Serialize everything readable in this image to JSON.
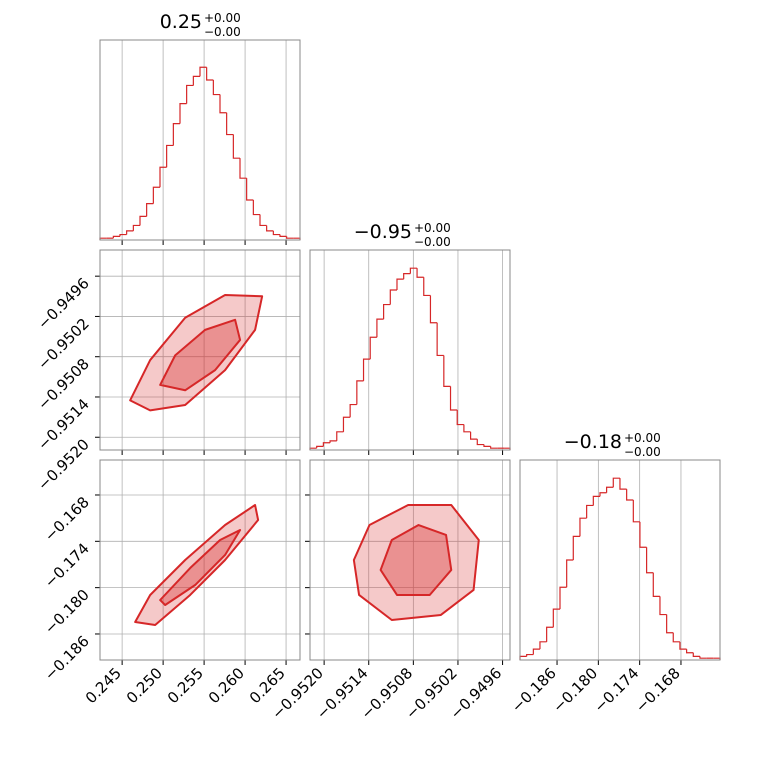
{
  "chart_data": [
    {
      "type": "histogram",
      "title": "0.25",
      "title_upper": "+0.00",
      "title_lower": "−0.00",
      "color": "#d62728",
      "xlim": [
        0.2423,
        0.2667
      ],
      "ylim": [
        0,
        110
      ],
      "xticks": [
        0.245,
        {
          "value": 0.25,
          "label": "0.250"
        },
        0.255,
        {
          "value": 0.26,
          "label": "0.260"
        },
        0.265
      ],
      "grid": true,
      "xtick_labels": false,
      "bins": [
        0.2423,
        0.24311,
        0.24393,
        0.24474,
        0.24555,
        0.24637,
        0.24718,
        0.24799,
        0.24881,
        0.24962,
        0.25043,
        0.25125,
        0.25206,
        0.25287,
        0.25369,
        0.2545,
        0.25531,
        0.25613,
        0.25694,
        0.25775,
        0.25857,
        0.25938,
        0.26019,
        0.26101,
        0.26182,
        0.26263,
        0.26345,
        0.26426,
        0.26507,
        0.26589,
        0.2667
      ],
      "counts": [
        1,
        1,
        2,
        3,
        5,
        8,
        13,
        20,
        29,
        40,
        52,
        64,
        75,
        85,
        90,
        95,
        88,
        80,
        70,
        58,
        45,
        34,
        22,
        14,
        8,
        5,
        3,
        2,
        1,
        1
      ]
    },
    {
      "type": "contour",
      "color": "#d62728",
      "grid": true,
      "xtick_labels": false,
      "ytick_labels": true,
      "xlim": [
        0.2423,
        0.2667
      ],
      "ylim": [
        -0.95219,
        -0.94921
      ],
      "xticks": [
        0.245,
        {
          "value": 0.25,
          "label": "0.250"
        },
        0.255,
        {
          "value": 0.26,
          "label": "0.260"
        },
        0.265
      ],
      "yticks": [
        {
          "value": -0.9496,
          "label": "−0.9496"
        },
        {
          "value": -0.9502,
          "label": "−0.9502"
        },
        {
          "value": -0.9508,
          "label": "−0.9508"
        },
        {
          "value": -0.9514,
          "label": "−0.9514"
        },
        {
          "value": -0.952,
          "label": "−0.9520"
        }
      ],
      "contours": [
        [
          [
            0.24598,
            -0.95145
          ],
          [
            0.24842,
            -0.95085
          ],
          [
            0.25269,
            -0.95022
          ],
          [
            0.25756,
            -0.94988
          ],
          [
            0.26208,
            -0.9499
          ],
          [
            0.26122,
            -0.9504
          ],
          [
            0.25756,
            -0.951
          ],
          [
            0.25269,
            -0.95152
          ],
          [
            0.24842,
            -0.9516
          ]
        ],
        [
          [
            0.24964,
            -0.95122
          ],
          [
            0.25147,
            -0.95078
          ],
          [
            0.25512,
            -0.9504
          ],
          [
            0.25878,
            -0.95025
          ],
          [
            0.25939,
            -0.95055
          ],
          [
            0.25634,
            -0.951
          ],
          [
            0.25269,
            -0.9513
          ]
        ]
      ]
    },
    {
      "type": "histogram",
      "title": "−0.95",
      "title_upper": "+0.00",
      "title_lower": "−0.00",
      "color": "#d62728",
      "xlim": [
        -0.95219,
        -0.9495
      ],
      "ylim": [
        0,
        110
      ],
      "grid": true,
      "xtick_labels": false,
      "xticks": [
        {
          "value": -0.952,
          "label": "−0.9520"
        },
        {
          "value": -0.9514,
          "label": "−0.9514"
        },
        {
          "value": -0.9508,
          "label": "−0.9508"
        },
        {
          "value": -0.9502,
          "label": "−0.9502"
        },
        {
          "value": -0.9496,
          "label": "−0.9496"
        }
      ],
      "bins": [
        -0.95219,
        -0.9521,
        -0.95201,
        -0.95192,
        -0.95183,
        -0.95174,
        -0.95165,
        -0.95156,
        -0.95147,
        -0.95138,
        -0.95129,
        -0.9512,
        -0.95111,
        -0.95102,
        -0.95093,
        -0.95084,
        -0.95075,
        -0.95066,
        -0.95057,
        -0.95048,
        -0.95039,
        -0.9503,
        -0.95021,
        -0.95012,
        -0.95003,
        -0.94994,
        -0.94985,
        -0.94976,
        -0.94967,
        -0.94958,
        -0.9495
      ],
      "counts": [
        1,
        2,
        4,
        5,
        10,
        18,
        25,
        38,
        50,
        62,
        72,
        80,
        88,
        94,
        97,
        100,
        95,
        85,
        70,
        52,
        35,
        22,
        14,
        10,
        6,
        3,
        2,
        1,
        1,
        1
      ]
    },
    {
      "type": "contour",
      "color": "#d62728",
      "grid": true,
      "xtick_labels": true,
      "ytick_labels": true,
      "xlim": [
        0.2423,
        0.2667
      ],
      "ylim": [
        -0.18937,
        -0.16347
      ],
      "xticks": [
        0.245,
        {
          "value": 0.25,
          "label": "0.250"
        },
        0.255,
        {
          "value": 0.26,
          "label": "0.260"
        },
        0.265
      ],
      "yticks": [
        {
          "value": -0.168,
          "label": "−0.168"
        },
        {
          "value": -0.174,
          "label": "−0.174"
        },
        {
          "value": -0.18,
          "label": "−0.180"
        },
        {
          "value": -0.186,
          "label": "−0.186"
        }
      ],
      "contours": [
        [
          [
            0.24659,
            -0.18445
          ],
          [
            0.24842,
            -0.18095
          ],
          [
            0.25269,
            -0.17642
          ],
          [
            0.25756,
            -0.17189
          ],
          [
            0.26122,
            -0.1693
          ],
          [
            0.26159,
            -0.17124
          ],
          [
            0.25756,
            -0.17642
          ],
          [
            0.2533,
            -0.18095
          ],
          [
            0.24903,
            -0.18484
          ]
        ],
        [
          [
            0.24964,
            -0.1816
          ],
          [
            0.2533,
            -0.17746
          ],
          [
            0.25695,
            -0.17383
          ],
          [
            0.25939,
            -0.17254
          ],
          [
            0.25756,
            -0.17577
          ],
          [
            0.25391,
            -0.17966
          ],
          [
            0.25025,
            -0.18225
          ]
        ]
      ]
    },
    {
      "type": "contour",
      "color": "#d62728",
      "grid": true,
      "xtick_labels": true,
      "ytick_labels": false,
      "xlim": [
        -0.95219,
        -0.9495
      ],
      "ylim": [
        -0.18937,
        -0.16347
      ],
      "xticks": [
        {
          "value": -0.952,
          "label": "−0.9520"
        },
        {
          "value": -0.9514,
          "label": "−0.9514"
        },
        {
          "value": -0.9508,
          "label": "−0.9508"
        },
        {
          "value": -0.9502,
          "label": "−0.9502"
        },
        {
          "value": -0.9496,
          "label": "−0.9496"
        }
      ],
      "yticks": [
        {
          "value": -0.168,
          "label": "−0.168"
        },
        {
          "value": -0.174,
          "label": "−0.174"
        },
        {
          "value": -0.18,
          "label": "−0.180"
        },
        {
          "value": -0.186,
          "label": "−0.186"
        }
      ],
      "contours": [
        [
          [
            -0.9516,
            -0.17642
          ],
          [
            -0.95139,
            -0.17189
          ],
          [
            -0.95087,
            -0.1693
          ],
          [
            -0.95029,
            -0.1693
          ],
          [
            -0.94992,
            -0.17383
          ],
          [
            -0.94999,
            -0.1803
          ],
          [
            -0.95043,
            -0.18354
          ],
          [
            -0.95109,
            -0.18419
          ],
          [
            -0.95153,
            -0.18095
          ]
        ],
        [
          [
            -0.95124,
            -0.17771
          ],
          [
            -0.95109,
            -0.17383
          ],
          [
            -0.95073,
            -0.17189
          ],
          [
            -0.95036,
            -0.17318
          ],
          [
            -0.95029,
            -0.17771
          ],
          [
            -0.95058,
            -0.18095
          ],
          [
            -0.95102,
            -0.18095
          ]
        ]
      ]
    },
    {
      "type": "histogram",
      "title": "−0.18",
      "title_upper": "+0.00",
      "title_lower": "−0.00",
      "color": "#d62728",
      "xlim": [
        -0.19138,
        -0.16233
      ],
      "ylim": [
        0,
        110
      ],
      "grid": true,
      "xtick_labels": true,
      "xticks": [
        {
          "value": -0.186,
          "label": "−0.186"
        },
        {
          "value": -0.18,
          "label": "−0.180"
        },
        {
          "value": -0.174,
          "label": "−0.174"
        },
        {
          "value": -0.168,
          "label": "−0.168"
        }
      ],
      "bins": [
        -0.19138,
        -0.19041,
        -0.18944,
        -0.18848,
        -0.18751,
        -0.18654,
        -0.18557,
        -0.1846,
        -0.18364,
        -0.18267,
        -0.1817,
        -0.18073,
        -0.17976,
        -0.1788,
        -0.17783,
        -0.17686,
        -0.17589,
        -0.17492,
        -0.17396,
        -0.17299,
        -0.17202,
        -0.17105,
        -0.17008,
        -0.16912,
        -0.16815,
        -0.16718,
        -0.16621,
        -0.16524,
        -0.16427,
        -0.16331,
        -0.16233
      ],
      "counts": [
        2,
        3,
        6,
        10,
        18,
        28,
        40,
        55,
        68,
        78,
        85,
        90,
        92,
        95,
        100,
        94,
        88,
        76,
        62,
        48,
        35,
        25,
        15,
        10,
        6,
        4,
        2,
        1,
        1,
        1
      ]
    }
  ]
}
